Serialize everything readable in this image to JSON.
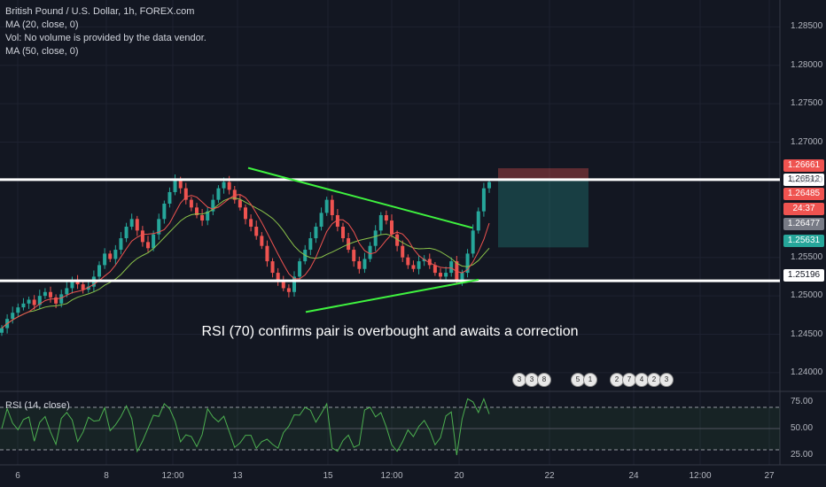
{
  "legend": {
    "title": "British Pound / U.S. Dollar, 1h, FOREX.com",
    "ma20": "MA (20, close, 0)",
    "vol": "Vol: No volume is provided by the data vendor.",
    "ma50": "MA (50, close, 0)"
  },
  "annotation": "RSI (70) confirms pair is overbought and awaits a correction",
  "rsi_label": "RSI (14, close)",
  "colors": {
    "background": "#131722",
    "up": "#26a69a",
    "down": "#ef5350",
    "ma20": "#ef5350",
    "ma50": "#8bc34a",
    "trendline": "#3ff23f",
    "level": "#ffffff",
    "rsi": "#4caf50"
  },
  "price_tags": [
    {
      "value": "1.26661",
      "color": "#ef5350"
    },
    {
      "value": "1.26512",
      "color": "#ffffff",
      "text_color": "#131722"
    },
    {
      "value": "1.26485",
      "color": "#ef5350"
    },
    {
      "value": "24:37",
      "color": "#ef5350"
    },
    {
      "value": "1.26477",
      "color": "#787b86"
    },
    {
      "value": "1.25631",
      "color": "#26a69a"
    },
    {
      "value": "1.25196",
      "color": "#ffffff",
      "text_color": "#131722"
    }
  ],
  "events": [
    "3",
    "3",
    "8",
    "5",
    "1",
    "2",
    "7",
    "4",
    "2",
    "3"
  ],
  "chart_data": {
    "type": "candlestick",
    "symbol": "British Pound / U.S. Dollar",
    "timeframe": "1h",
    "y_axis_ticks": [
      "1.28500",
      "1.28000",
      "1.27500",
      "1.27000",
      "1.26500",
      "1.25500",
      "1.25000",
      "1.24500",
      "1.24000"
    ],
    "ylim": [
      1.2378,
      1.2885
    ],
    "x_axis_ticks": [
      "6",
      "8",
      "12:00",
      "13",
      "15",
      "12:00",
      "20",
      "22",
      "24",
      "12:00",
      "27"
    ],
    "horizontal_levels": [
      1.26512,
      1.25196
    ],
    "trade_box": {
      "entry": 1.26512,
      "stop": 1.26661,
      "target": 1.25631
    },
    "triangle": {
      "upper": [
        [
          1.26665
        ],
        [
          1.25885
        ]
      ],
      "lower": [
        [
          1.2479
        ],
        [
          1.2521
        ]
      ]
    },
    "close_path": [
      1.2458,
      1.247,
      1.2478,
      1.2485,
      1.249,
      1.2495,
      1.2488,
      1.25,
      1.2505,
      1.2498,
      1.249,
      1.2502,
      1.251,
      1.252,
      1.2515,
      1.2508,
      1.2512,
      1.2525,
      1.254,
      1.2555,
      1.2548,
      1.256,
      1.2575,
      1.259,
      1.26,
      1.2585,
      1.257,
      1.2562,
      1.258,
      1.26,
      1.262,
      1.2635,
      1.265,
      1.264,
      1.2625,
      1.2615,
      1.2605,
      1.2598,
      1.261,
      1.2625,
      1.264,
      1.2648,
      1.2638,
      1.2625,
      1.2615,
      1.26,
      1.259,
      1.2578,
      1.2565,
      1.2545,
      1.253,
      1.2518,
      1.251,
      1.2505,
      1.2525,
      1.2545,
      1.256,
      1.2575,
      1.259,
      1.2608,
      1.2625,
      1.2605,
      1.259,
      1.2575,
      1.256,
      1.2545,
      1.2535,
      1.2548,
      1.2565,
      1.2585,
      1.2605,
      1.2598,
      1.258,
      1.2565,
      1.255,
      1.254,
      1.2535,
      1.2545,
      1.2548,
      1.254,
      1.253,
      1.2525,
      1.253,
      1.2545,
      1.252,
      1.253,
      1.2555,
      1.2585,
      1.261,
      1.264,
      1.2648
    ],
    "rsi": {
      "lines": [
        75.0,
        50.0,
        25.0
      ],
      "overbought": 70,
      "oversold": 30
    }
  }
}
